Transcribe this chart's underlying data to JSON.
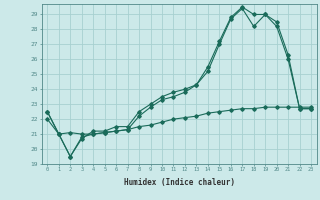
{
  "xlabel": "Humidex (Indice chaleur)",
  "xlim": [
    -0.5,
    23.5
  ],
  "ylim": [
    19,
    29.7
  ],
  "yticks": [
    19,
    20,
    21,
    22,
    23,
    24,
    25,
    26,
    27,
    28,
    29
  ],
  "xticks": [
    0,
    1,
    2,
    3,
    4,
    5,
    6,
    7,
    8,
    9,
    10,
    11,
    12,
    13,
    14,
    15,
    16,
    17,
    18,
    19,
    20,
    21,
    22,
    23
  ],
  "background_color": "#cce9e9",
  "grid_color": "#a8d0d0",
  "line_color": "#1a6b5a",
  "series1_x": [
    0,
    1,
    2,
    3,
    4,
    5,
    6,
    7,
    8,
    9,
    10,
    11,
    12,
    13,
    14,
    15,
    16,
    17,
    18,
    19,
    20,
    21,
    22,
    23
  ],
  "series1_y": [
    22.5,
    21.0,
    19.5,
    20.7,
    21.2,
    21.2,
    21.5,
    21.5,
    22.5,
    23.0,
    23.5,
    23.8,
    24.0,
    24.3,
    25.5,
    27.2,
    28.8,
    29.5,
    29.0,
    29.0,
    28.5,
    26.3,
    22.7,
    22.7
  ],
  "series2_x": [
    0,
    1,
    2,
    3,
    4,
    5,
    6,
    7,
    8,
    9,
    10,
    11,
    12,
    13,
    14,
    15,
    16,
    17,
    18,
    19,
    20,
    21,
    22,
    23
  ],
  "series2_y": [
    22.5,
    21.0,
    19.5,
    20.8,
    21.0,
    21.1,
    21.2,
    21.3,
    22.2,
    22.8,
    23.3,
    23.5,
    23.8,
    24.3,
    25.2,
    27.0,
    28.7,
    29.4,
    28.2,
    29.0,
    28.2,
    26.0,
    22.7,
    22.7
  ],
  "series3_x": [
    0,
    1,
    2,
    3,
    4,
    5,
    6,
    7,
    8,
    9,
    10,
    11,
    12,
    13,
    14,
    15,
    16,
    17,
    18,
    19,
    20,
    21,
    22,
    23
  ],
  "series3_y": [
    22.0,
    21.0,
    21.1,
    21.0,
    21.0,
    21.1,
    21.2,
    21.3,
    21.5,
    21.6,
    21.8,
    22.0,
    22.1,
    22.2,
    22.4,
    22.5,
    22.6,
    22.7,
    22.7,
    22.8,
    22.8,
    22.8,
    22.8,
    22.8
  ]
}
